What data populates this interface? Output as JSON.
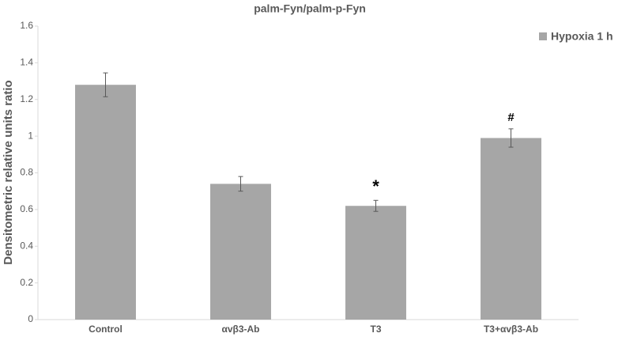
{
  "chart_data": {
    "type": "bar",
    "title": "palm-Fyn/palm-p-Fyn",
    "y_label": "Densitometric relative units ratio",
    "categories": [
      "Control",
      "αvβ3-Ab",
      "T3",
      "T3+αvβ3-Ab"
    ],
    "series": [
      {
        "name": "Hypoxia 1 h",
        "color": "#a6a6a6",
        "values": [
          1.28,
          0.74,
          0.62,
          0.99
        ],
        "errors": [
          0.065,
          0.04,
          0.03,
          0.05
        ]
      }
    ],
    "annotations": [
      null,
      null,
      "*",
      "#"
    ],
    "ylim": [
      0,
      1.6
    ],
    "yticks": [
      0,
      0.2,
      0.4,
      0.6,
      0.8,
      1,
      1.2,
      1.4,
      1.6
    ],
    "grid": false,
    "legend": "top-right"
  }
}
